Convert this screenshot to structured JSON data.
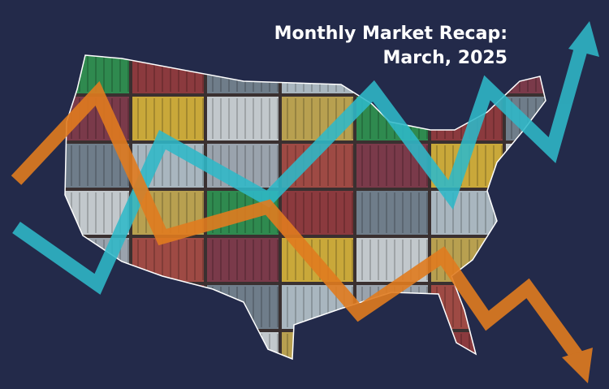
{
  "title": {
    "line1": "Monthly Market Recap:",
    "line2": "March, 2025"
  }
}
